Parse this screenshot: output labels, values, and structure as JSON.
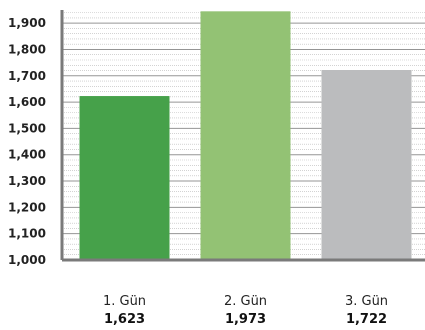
{
  "chart_data": {
    "type": "bar",
    "categories": [
      "1. Gün",
      "2. Gün",
      "3. Gün"
    ],
    "values": [
      1623,
      1973,
      1722
    ],
    "value_labels": [
      "1,623",
      "1,973",
      "1,722"
    ],
    "ylim": [
      1000,
      1950
    ],
    "yticks": [
      1000,
      1100,
      1200,
      1300,
      1400,
      1500,
      1600,
      1700,
      1800,
      1900
    ],
    "ytick_labels": [
      "1,000",
      "1,100",
      "1,200",
      "1,300",
      "1,400",
      "1,500",
      "1,600",
      "1,700",
      "1,800",
      "1,900"
    ],
    "minor_grid_step": 20,
    "grid": true,
    "bar_colors": [
      "#46a14a",
      "#93c274",
      "#bbbcbe"
    ],
    "axis_color": "#7a7a7a",
    "grid_color": "#8a8a8a"
  }
}
